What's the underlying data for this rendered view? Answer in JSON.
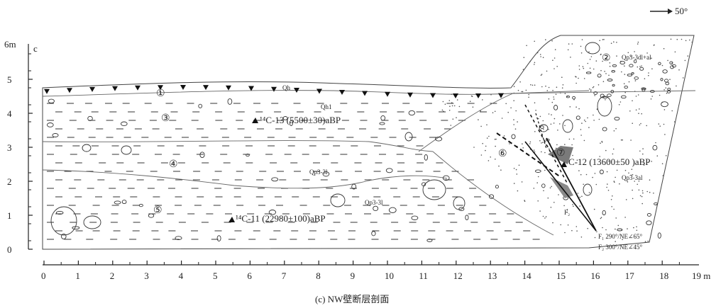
{
  "figure": {
    "caption": "(c) NW壁断层剖面",
    "north_arrow_label": "50°"
  },
  "axes": {
    "y_unit": "6m",
    "y_corner_label": "c",
    "y_ticks": [
      "0",
      "1",
      "2",
      "3",
      "4",
      "5"
    ],
    "x_unit": "19 m",
    "x_ticks": [
      "0",
      "1",
      "2",
      "3",
      "4",
      "5",
      "6",
      "7",
      "8",
      "9",
      "10",
      "11",
      "12",
      "13",
      "14",
      "15",
      "16",
      "17",
      "18"
    ]
  },
  "layers": {
    "1": {
      "num": "①",
      "code": "Qh"
    },
    "2": {
      "num": "②",
      "code": "Qp3-3dl+al"
    },
    "3": {
      "num": "③",
      "code": "Qh1"
    },
    "4": {
      "num": "④",
      "code": "Qp3-3l"
    },
    "5": {
      "num": "⑤",
      "code": "Qp3-3l"
    },
    "6": {
      "num": "⑥"
    },
    "7": {
      "num": "⑦",
      "code": "Qp3-3al"
    }
  },
  "dates": {
    "c13": "¹⁴C-13  (5500±30)aBP",
    "c12": "C-12  (13600±50 )aBP",
    "c11": "¹⁴C-11  (22980±100)aBP"
  },
  "faults": {
    "f2_label": "F₂",
    "f1_attitude": "F₁  290°/NE∠65°",
    "f2_attitude": "F₂  300°/NE∠45°"
  }
}
